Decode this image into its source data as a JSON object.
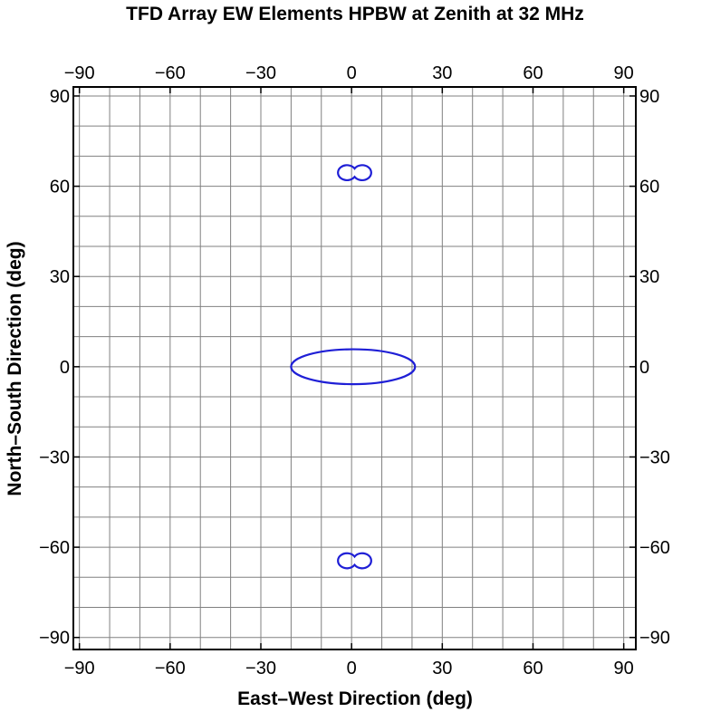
{
  "chart_data": {
    "type": "line",
    "title": "TFD Array EW Elements HPBW at Zenith at 32 MHz",
    "xlabel": "East–West Direction (deg)",
    "ylabel": "North–South Direction (deg)",
    "xlim": [
      -92,
      94
    ],
    "ylim": [
      -94,
      93
    ],
    "xticks": [
      -90,
      -60,
      -30,
      0,
      30,
      60,
      90
    ],
    "yticks": [
      -90,
      -60,
      -30,
      0,
      30,
      60,
      90
    ],
    "xtick_labels": [
      "−90",
      "−60",
      "−30",
      "0",
      "30",
      "60",
      "90"
    ],
    "ytick_labels": [
      "−90",
      "−60",
      "−30",
      "0",
      "30",
      "60",
      "90"
    ],
    "grid": true,
    "grid_spacing": 10,
    "color": "#1f1fd6",
    "series": [
      {
        "shape": "ellipse",
        "center": [
          0.5,
          0
        ],
        "rx": 20.5,
        "ry": 5.8
      },
      {
        "shape": "double-lobe",
        "center": [
          1,
          64.5
        ],
        "lobe_centers": [
          -1.5,
          3.5
        ],
        "lobe_rx": 3,
        "lobe_ry": 2.5
      },
      {
        "shape": "double-lobe",
        "center": [
          1,
          -64.5
        ],
        "lobe_centers": [
          -1.5,
          3.5
        ],
        "lobe_rx": 3,
        "lobe_ry": 2.5
      }
    ]
  }
}
